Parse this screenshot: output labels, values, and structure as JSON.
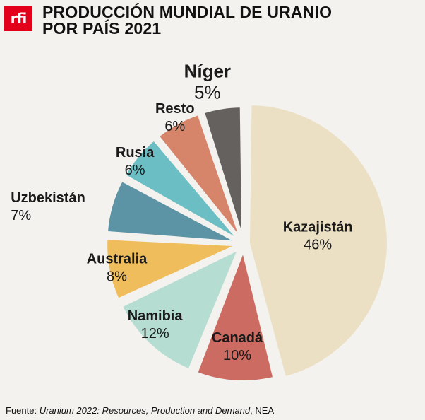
{
  "brand": {
    "logo_text": "rfi",
    "logo_color": "#e2001a"
  },
  "title": {
    "line1": "PRODUCCIÓN MUNDIAL DE URANIO",
    "line2": "POR PAÍS 2021"
  },
  "source": {
    "prefix": "Fuente: ",
    "work": "Uranium 2022: Resources, Production and Demand",
    "suffix": ", NEA"
  },
  "chart_data": {
    "type": "pie",
    "style": "exploded",
    "unit": "%",
    "slices": [
      {
        "label": "Kazajistán",
        "value": 46,
        "color": "#ece0c4"
      },
      {
        "label": "Canadá",
        "value": 10,
        "color": "#cc6b62"
      },
      {
        "label": "Namibia",
        "value": 12,
        "color": "#b6ddd2"
      },
      {
        "label": "Australia",
        "value": 8,
        "color": "#f0bd5c"
      },
      {
        "label": "Uzbekistán",
        "value": 7,
        "color": "#5c94a6"
      },
      {
        "label": "Rusia",
        "value": 6,
        "color": "#6bbfc4"
      },
      {
        "label": "Resto",
        "value": 6,
        "color": "#d6846a"
      },
      {
        "label": "Níger",
        "value": 5,
        "color": "#65615f"
      }
    ]
  }
}
